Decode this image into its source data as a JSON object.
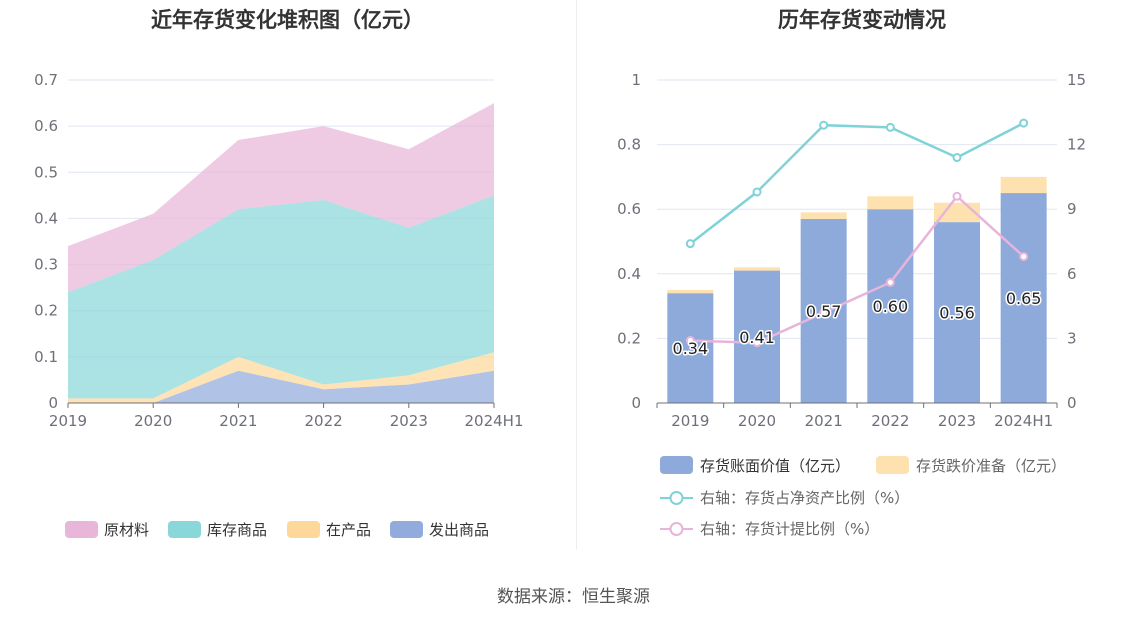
{
  "left_chart": {
    "title": "近年存货变化堆积图（亿元）"
  },
  "right_chart": {
    "title": "历年存货变动情况"
  },
  "source": "数据来源：恒生聚源",
  "colors": {
    "raw_material": "#e8b6d8",
    "inventory_goods": "#8ad7d9",
    "wip": "#fdd89a",
    "shipped_goods": "#91acdc",
    "book_value_bar": "#8eaadb",
    "provision_bar": "#fde1ae",
    "net_asset_ratio_line": "#7fd3d8",
    "provision_ratio_line": "#e8b4da"
  },
  "chart_data": [
    {
      "type": "area",
      "stacked": true,
      "title": "近年存货变化堆积图（亿元）",
      "categories": [
        "2019",
        "2020",
        "2021",
        "2022",
        "2023",
        "2024H1"
      ],
      "ylim": [
        0,
        0.7
      ],
      "yticks": [
        "0",
        "0.1",
        "0.2",
        "0.3",
        "0.4",
        "0.5",
        "0.6",
        "0.7"
      ],
      "grid": true,
      "legend_position": "bottom",
      "series": [
        {
          "name": "发出商品",
          "color": "#91acdc",
          "values": [
            0.0,
            0.0,
            0.07,
            0.03,
            0.04,
            0.07
          ]
        },
        {
          "name": "在产品",
          "color": "#fdd89a",
          "values": [
            0.01,
            0.01,
            0.03,
            0.01,
            0.02,
            0.04
          ]
        },
        {
          "name": "库存商品",
          "color": "#8ad7d9",
          "values": [
            0.23,
            0.3,
            0.32,
            0.4,
            0.32,
            0.34
          ]
        },
        {
          "name": "原材料",
          "color": "#e8b6d8",
          "values": [
            0.1,
            0.1,
            0.15,
            0.16,
            0.17,
            0.2
          ]
        }
      ],
      "legend_order": [
        "原材料",
        "库存商品",
        "在产品",
        "发出商品"
      ]
    },
    {
      "type": "bar",
      "stacked": true,
      "title": "历年存货变动情况",
      "categories": [
        "2019",
        "2020",
        "2021",
        "2022",
        "2023",
        "2024H1"
      ],
      "ylim": [
        0,
        1
      ],
      "yticks": [
        "0",
        "0.2",
        "0.4",
        "0.6",
        "0.8",
        "1"
      ],
      "y2lim": [
        0,
        15
      ],
      "y2ticks": [
        "0",
        "3",
        "6",
        "9",
        "12",
        "15"
      ],
      "grid": true,
      "legend_position": "bottom",
      "series": [
        {
          "name": "存货账面价值（亿元）",
          "type": "bar",
          "axis": "left",
          "color": "#8eaadb",
          "values": [
            0.34,
            0.41,
            0.57,
            0.6,
            0.56,
            0.65
          ],
          "labels": [
            "0.34",
            "0.41",
            "0.57",
            "0.60",
            "0.56",
            "0.65"
          ]
        },
        {
          "name": "存货跌价准备（亿元）",
          "type": "bar",
          "axis": "left",
          "color": "#fde1ae",
          "values": [
            0.01,
            0.01,
            0.02,
            0.04,
            0.06,
            0.05
          ]
        },
        {
          "name": "右轴：存货占净资产比例（%）",
          "type": "line",
          "axis": "right",
          "color": "#7fd3d8",
          "values": [
            7.4,
            9.8,
            12.9,
            12.8,
            11.4,
            13.0
          ]
        },
        {
          "name": "右轴：存货计提比例（%）",
          "type": "line",
          "axis": "right",
          "color": "#e8b4da",
          "values": [
            2.9,
            2.8,
            4.2,
            5.6,
            9.6,
            6.8
          ]
        }
      ]
    }
  ]
}
